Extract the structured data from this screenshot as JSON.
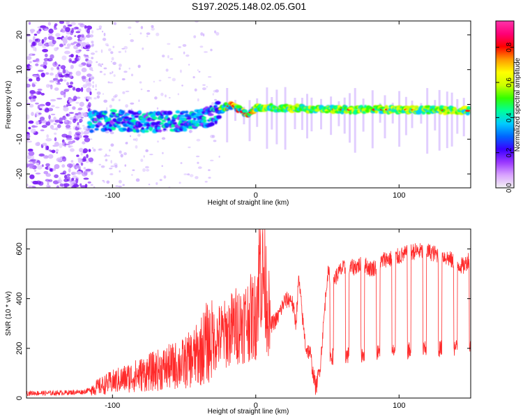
{
  "figure": {
    "title": "S197.2025.148.02.05.G01"
  },
  "chart_data": [
    {
      "type": "heatmap",
      "xlabel": "Height of straight line (km)",
      "ylabel": "Frequency (Hz)",
      "xlim": [
        -160,
        150
      ],
      "ylim": [
        -24,
        24
      ],
      "xticks": [
        -100,
        0,
        100
      ],
      "yticks": [
        -20,
        -10,
        0,
        10,
        20
      ],
      "colorbar": {
        "label": "Normalized spectral amplitude",
        "range": [
          0,
          0.95
        ],
        "ticks": [
          0.0,
          0.2,
          0.4,
          0.6,
          0.8
        ],
        "colors": [
          "#f2f2f2",
          "#d9a3ff",
          "#9a37ff",
          "#3a00ff",
          "#0066ff",
          "#00ccff",
          "#00ff99",
          "#33ff00",
          "#ccff00",
          "#ffff00",
          "#ff9900",
          "#ff0000",
          "#ff0077",
          "#ff33aa"
        ]
      },
      "ridge": {
        "description_x": [
          -115,
          -100,
          -80,
          -60,
          -40,
          -30,
          -20,
          -15,
          -10,
          -5,
          0,
          20,
          40,
          60,
          80,
          100,
          120,
          140,
          150
        ],
        "frequency": [
          -5,
          -4.5,
          -5,
          -5,
          -4.5,
          -3,
          -0.5,
          -0.5,
          -2,
          -3,
          -1,
          -1,
          -1.3,
          -1.5,
          -1.5,
          -1.5,
          -1.6,
          -1.8,
          -1.8
        ]
      },
      "grid": false
    },
    {
      "type": "line",
      "xlabel": "Height of straight line (km)",
      "ylabel": "SNR (10 * v/v)",
      "xlim": [
        -160,
        150
      ],
      "ylim": [
        0,
        680
      ],
      "xticks": [
        -100,
        0,
        100
      ],
      "yticks": [
        0,
        200,
        400,
        600
      ],
      "color": "#ff2a2a",
      "grid": false,
      "series": [
        {
          "x": [
            -160,
            -140,
            -120,
            -110,
            -100,
            -90,
            -80,
            -70,
            -60,
            -50,
            -40,
            -35,
            -30,
            -25,
            -20,
            -15,
            -10,
            -5,
            0,
            3,
            5,
            8,
            10,
            15,
            20,
            25,
            28,
            30,
            33,
            35,
            38,
            40,
            42,
            45,
            50,
            55,
            60,
            65,
            70,
            75,
            80,
            85,
            90,
            95,
            100,
            105,
            110,
            115,
            120,
            125,
            130,
            135,
            140,
            145,
            150
          ],
          "y": [
            20,
            20,
            25,
            45,
            65,
            80,
            95,
            110,
            125,
            140,
            175,
            220,
            230,
            250,
            260,
            290,
            300,
            320,
            330,
            550,
            520,
            400,
            290,
            320,
            390,
            400,
            300,
            480,
            300,
            200,
            180,
            100,
            40,
            130,
            500,
            480,
            520,
            520,
            530,
            540,
            520,
            530,
            560,
            560,
            570,
            580,
            590,
            590,
            590,
            580,
            575,
            560,
            540,
            530,
            570
          ]
        }
      ]
    }
  ]
}
